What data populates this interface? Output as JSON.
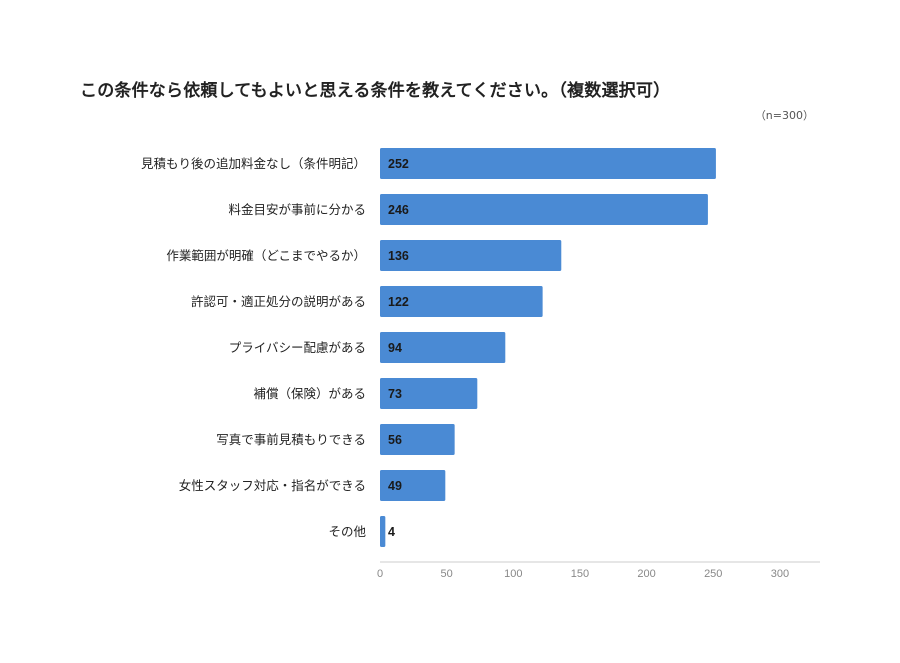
{
  "chart_data": {
    "type": "bar",
    "orientation": "horizontal",
    "title": "この条件なら依頼してもよいと思える条件を教えてください。（複数選択可）",
    "note": "（n=300）",
    "categories": [
      "見積もり後の追加料金なし（条件明記）",
      "料金目安が事前に分かる",
      "作業範囲が明確（どこまでやるか）",
      "許認可・適正処分の説明がある",
      "プライバシー配慮がある",
      "補償（保険）がある",
      "写真で事前見積もりできる",
      "女性スタッフ対応・指名ができる",
      "その他"
    ],
    "values": [
      252,
      246,
      136,
      122,
      94,
      73,
      56,
      49,
      4
    ],
    "xlim": [
      0,
      300
    ],
    "xticks": [
      0,
      50,
      100,
      150,
      200,
      250,
      300
    ],
    "grid": false,
    "legend": "none",
    "bar_color": "#4a8ad4"
  }
}
